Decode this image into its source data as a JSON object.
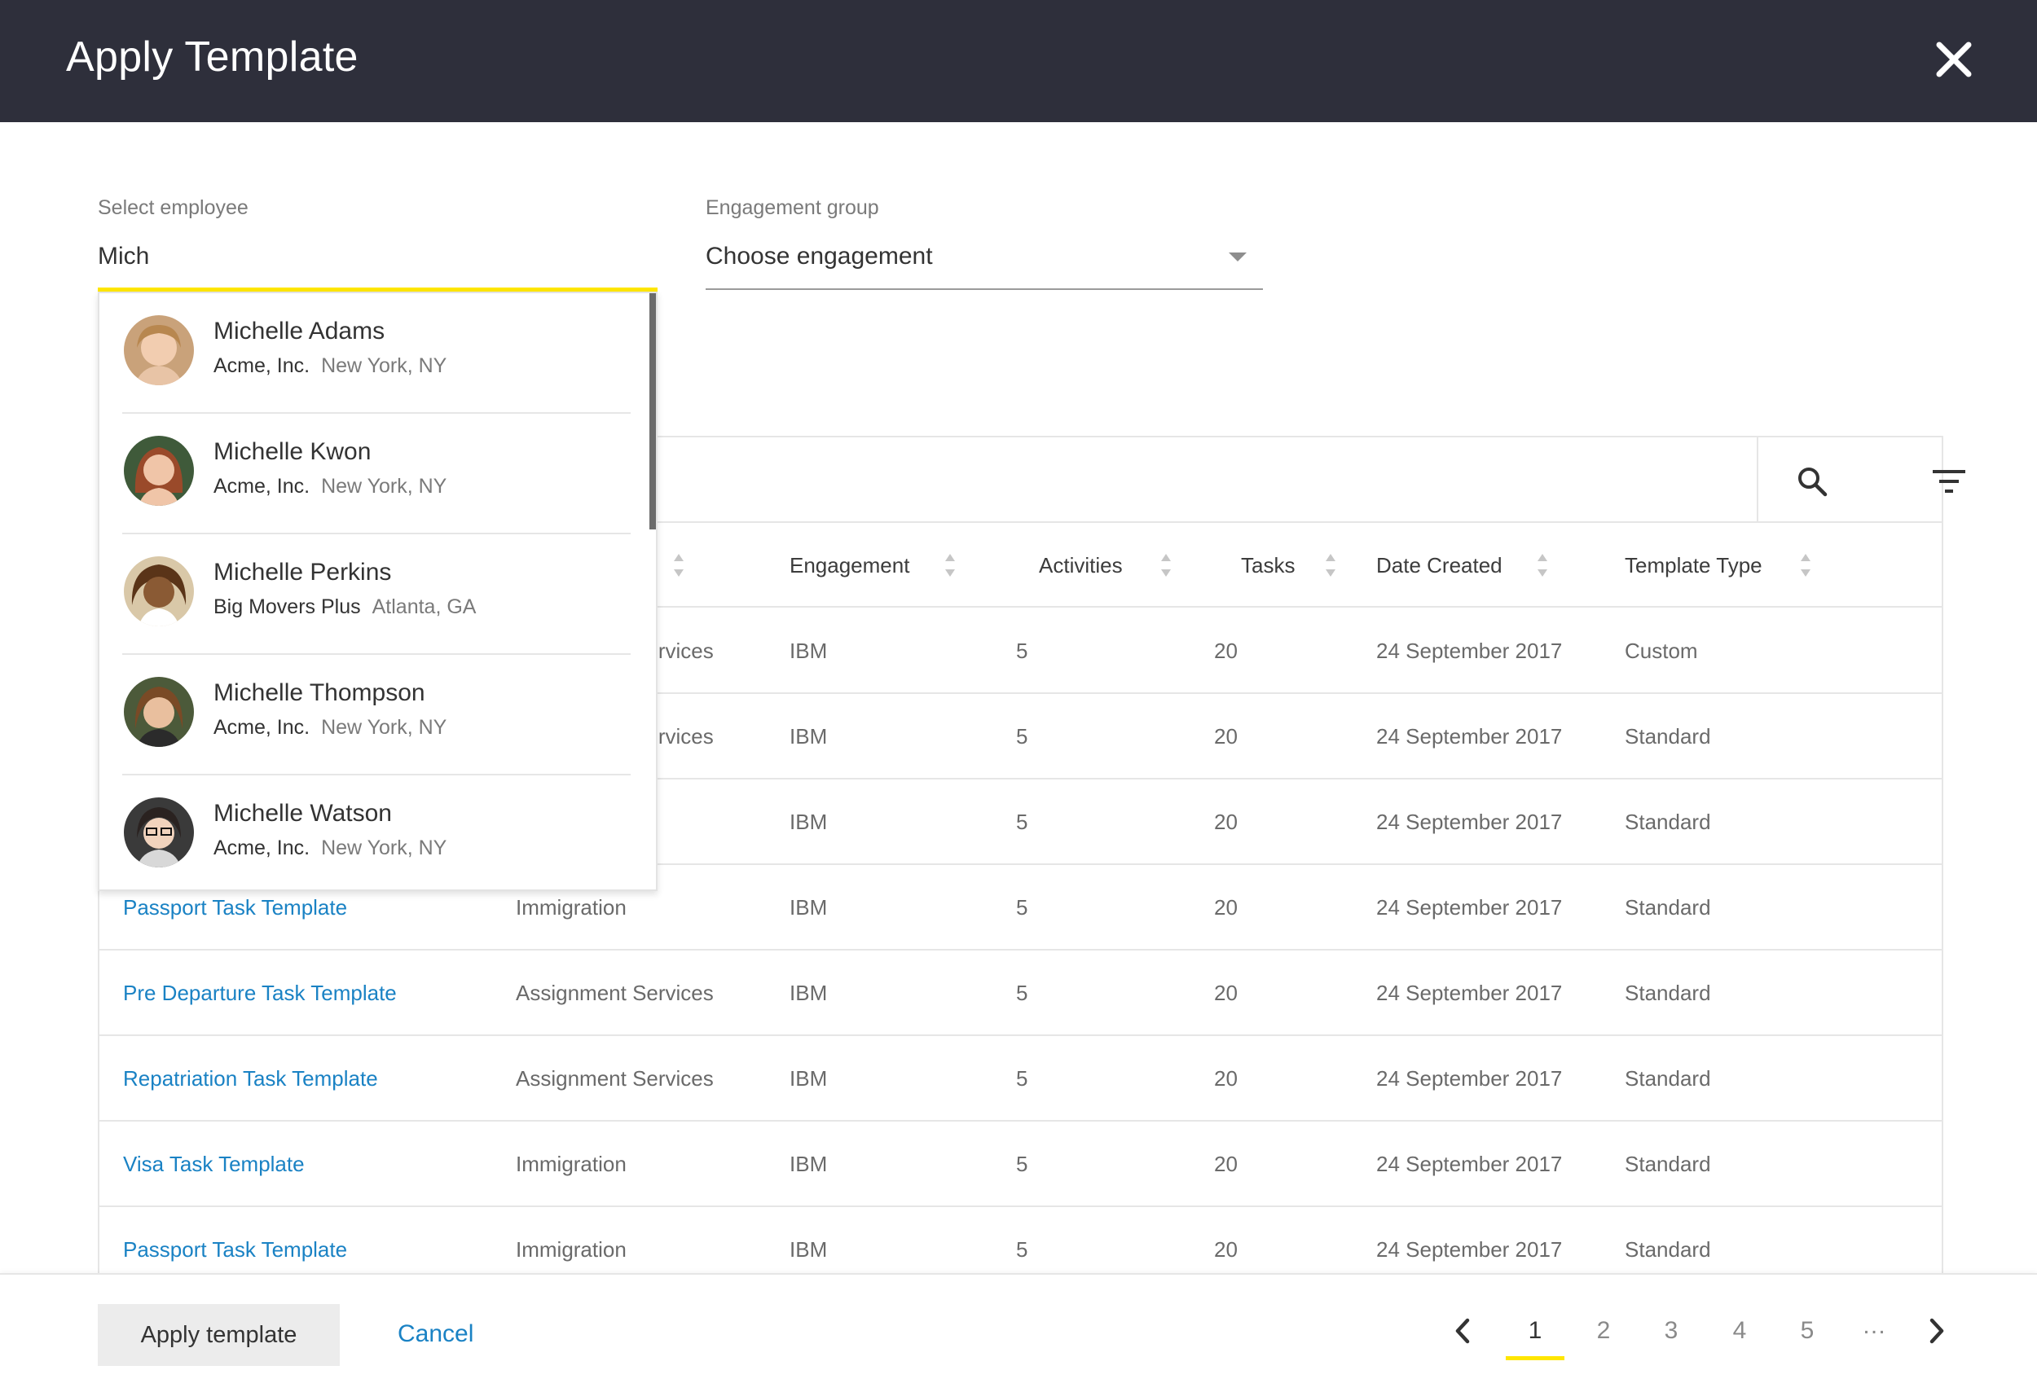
{
  "header": {
    "title": "Apply Template"
  },
  "employee_field": {
    "label": "Select employee",
    "value": "Mich"
  },
  "engagement_field": {
    "label": "Engagement group",
    "value": "Choose engagement"
  },
  "table": {
    "columns": [
      "Engagement",
      "Activities",
      "Tasks",
      "Date Created",
      "Template Type"
    ],
    "rows": [
      {
        "name": "",
        "group": "Assignment Services",
        "engagement": "IBM",
        "activities": "5",
        "tasks": "20",
        "date": "24 September 2017",
        "type": "Custom"
      },
      {
        "name": "",
        "group": "Assignment Services",
        "engagement": "IBM",
        "activities": "5",
        "tasks": "20",
        "date": "24 September 2017",
        "type": "Standard"
      },
      {
        "name": "",
        "group": "",
        "engagement": "IBM",
        "activities": "5",
        "tasks": "20",
        "date": "24 September 2017",
        "type": "Standard"
      },
      {
        "name": "Passport Task Template",
        "group": "Immigration",
        "engagement": "IBM",
        "activities": "5",
        "tasks": "20",
        "date": "24 September 2017",
        "type": "Standard"
      },
      {
        "name": "Pre Departure Task Template",
        "group": "Assignment Services",
        "engagement": "IBM",
        "activities": "5",
        "tasks": "20",
        "date": "24 September 2017",
        "type": "Standard"
      },
      {
        "name": "Repatriation Task Template",
        "group": "Assignment Services",
        "engagement": "IBM",
        "activities": "5",
        "tasks": "20",
        "date": "24 September 2017",
        "type": "Standard"
      },
      {
        "name": "Visa Task Template",
        "group": "Immigration",
        "engagement": "IBM",
        "activities": "5",
        "tasks": "20",
        "date": "24 September 2017",
        "type": "Standard"
      },
      {
        "name": "Passport Task Template",
        "group": "Immigration",
        "engagement": "IBM",
        "activities": "5",
        "tasks": "20",
        "date": "24 September 2017",
        "type": "Standard"
      }
    ]
  },
  "employees": [
    {
      "name": "Michelle Adams",
      "company": "Acme, Inc.",
      "location": "New York, NY"
    },
    {
      "name": "Michelle Kwon",
      "company": "Acme, Inc.",
      "location": "New York, NY"
    },
    {
      "name": "Michelle Perkins",
      "company": "Big Movers Plus",
      "location": "Atlanta, GA"
    },
    {
      "name": "Michelle Thompson",
      "company": "Acme, Inc.",
      "location": "New York, NY"
    },
    {
      "name": "Michelle Watson",
      "company": "Acme, Inc.",
      "location": "New York, NY"
    }
  ],
  "footer": {
    "apply_label": "Apply template",
    "cancel_label": "Cancel",
    "pages": [
      "1",
      "2",
      "3",
      "4",
      "5",
      "…"
    ],
    "current_page": "1"
  },
  "icons": {
    "close": "close-icon",
    "search": "search-icon",
    "filter": "filter-icon",
    "sort": "sort-icon",
    "prev": "chevron-left-icon",
    "next": "chevron-right-icon",
    "caret": "caret-down-icon"
  },
  "colors": {
    "header_bg": "#2e2f3b",
    "accent": "#ffe600",
    "link": "#1a82c4"
  }
}
